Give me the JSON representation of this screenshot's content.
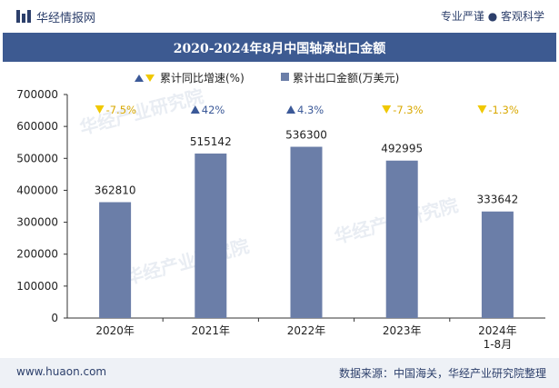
{
  "header": {
    "site_name": "华经情报网",
    "slogan": "专业严谨 ● 客观科学",
    "title": "2020-2024年8月中国轴承出口金额"
  },
  "footer": {
    "url": "www.huaon.com",
    "source": "数据来源：中国海关，华经产业研究院整理"
  },
  "watermark": "华经产业研究院",
  "colors": {
    "bar": "#6b7ea8",
    "up": "#3b5998",
    "down": "#f0c800",
    "title_bg": "#3d5a91"
  },
  "chart_data": {
    "type": "bar",
    "categories": [
      "2020年",
      "2021年",
      "2022年",
      "2023年",
      "2024年\n1-8月"
    ],
    "series": [
      {
        "name": "累计出口金额(万美元)",
        "values": [
          362810,
          515142,
          536300,
          492995,
          333642
        ]
      },
      {
        "name": "累计同比增速(%)",
        "values": [
          -7.5,
          42,
          4.3,
          -7.3,
          -1.3
        ]
      }
    ],
    "growth_labels": [
      "-7.5%",
      "42%",
      "4.3%",
      "-7.3%",
      "-1.3%"
    ],
    "value_labels": [
      "362810",
      "515142",
      "536300",
      "492995",
      "333642"
    ],
    "ylim": [
      0,
      700000
    ],
    "yticks": [
      "0",
      "100000",
      "200000",
      "300000",
      "400000",
      "500000",
      "600000",
      "700000"
    ],
    "legend": [
      "累计同比增速(%)",
      "累计出口金额(万美元)"
    ],
    "legend_position": "top"
  }
}
